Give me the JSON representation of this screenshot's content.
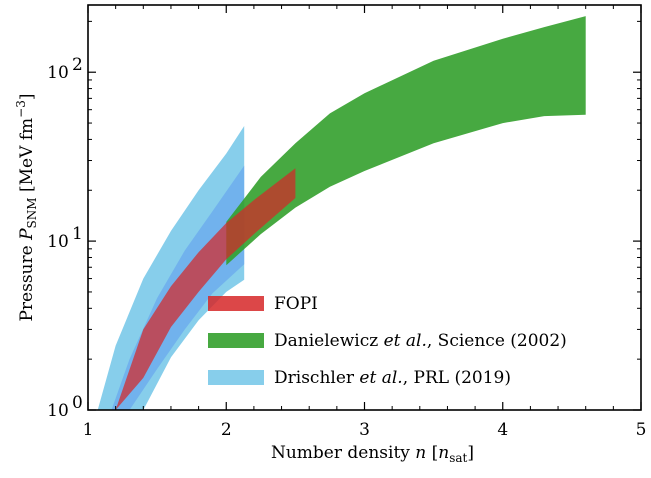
{
  "chart_data": {
    "type": "area",
    "xlabel": "Number density n [n_sat]",
    "ylabel": "Pressure P_SNM [MeV fm^-3]",
    "xlim": [
      1,
      5
    ],
    "ylim": [
      1,
      250
    ],
    "yscale": "log",
    "x_ticks": [
      {
        "value": 1,
        "label": "1"
      },
      {
        "value": 2,
        "label": "2"
      },
      {
        "value": 3,
        "label": "3"
      },
      {
        "value": 4,
        "label": "4"
      },
      {
        "value": 5,
        "label": "5"
      }
    ],
    "y_ticks": [
      {
        "value": 1,
        "label": "10",
        "exp": "0"
      },
      {
        "value": 10,
        "label": "10",
        "exp": "1"
      },
      {
        "value": 100,
        "label": "10",
        "exp": "2"
      }
    ],
    "legend_position": "lower-right",
    "series": [
      {
        "name": "Drischler et al., PRL (2019)",
        "color": "#87ceeb",
        "opacity": 1.0,
        "x": [
          1.07,
          1.2,
          1.4,
          1.6,
          1.8,
          2.0,
          2.13
        ],
        "lower": [
          1.0,
          1.0,
          1.0,
          2.05,
          3.4,
          5.0,
          5.9
        ],
        "upper": [
          1.0,
          2.4,
          6.0,
          11.5,
          20.0,
          33.0,
          48.0
        ]
      },
      {
        "name": "Drischler et al., PRL (2019) (inner band)",
        "color": "#6aa8ee",
        "opacity": 0.75,
        "x": [
          1.17,
          1.3,
          1.5,
          1.7,
          1.9,
          2.13
        ],
        "lower": [
          1.0,
          1.0,
          1.75,
          3.0,
          4.9,
          7.3
        ],
        "upper": [
          1.0,
          2.0,
          4.6,
          8.8,
          15.0,
          28.0
        ]
      },
      {
        "name": "Danielewicz et al., Science (2002)",
        "color": "#33a02c",
        "opacity": 0.9,
        "x": [
          2.0,
          2.25,
          2.5,
          2.75,
          3.0,
          3.5,
          4.0,
          4.3,
          4.6
        ],
        "lower": [
          7.2,
          11.0,
          15.8,
          21.0,
          26.0,
          38.0,
          50.0,
          55.0,
          56.0
        ],
        "upper": [
          13.0,
          24.0,
          38.0,
          57.0,
          75.0,
          117.0,
          158.0,
          185.0,
          215.0
        ]
      },
      {
        "name": "FOPI",
        "color": "#d62728",
        "opacity": 0.72,
        "x": [
          1.2,
          1.4,
          1.6,
          1.8,
          2.0,
          2.2,
          2.5
        ],
        "lower": [
          1.0,
          1.55,
          3.1,
          5.0,
          7.8,
          11.0,
          18.0
        ],
        "upper": [
          1.0,
          3.0,
          5.4,
          8.6,
          12.8,
          17.5,
          27.0
        ]
      }
    ],
    "legend": [
      {
        "label": "FOPI",
        "color": "#d62728",
        "opacity": 0.85
      },
      {
        "label": "Danielewicz et al., Science (2002)",
        "color": "#33a02c",
        "opacity": 0.9
      },
      {
        "label": "Drischler et al., PRL (2019)",
        "color": "#87ceeb",
        "opacity": 1.0
      }
    ]
  }
}
